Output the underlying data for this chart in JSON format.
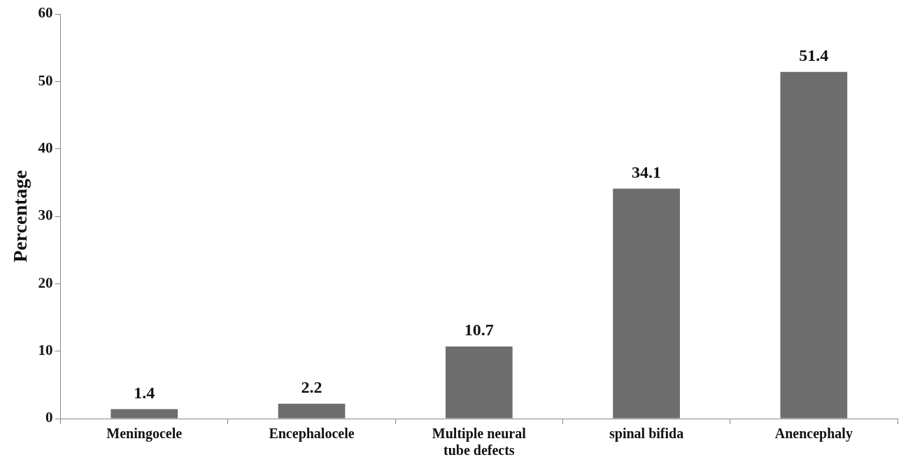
{
  "chart_data": {
    "type": "bar",
    "ylabel": "Percentage",
    "categories": [
      "Meningocele",
      "Encephalocele",
      "Multiple neural tube defects",
      "spinal bifida",
      "Anencephaly"
    ],
    "values": [
      1.4,
      2.2,
      10.7,
      34.1,
      51.4
    ],
    "color": "#6d6d6d",
    "ylim": [
      0,
      60
    ],
    "yticks": [
      0,
      10,
      20,
      30,
      40,
      50,
      60
    ],
    "grid": false,
    "data_labels": true
  }
}
